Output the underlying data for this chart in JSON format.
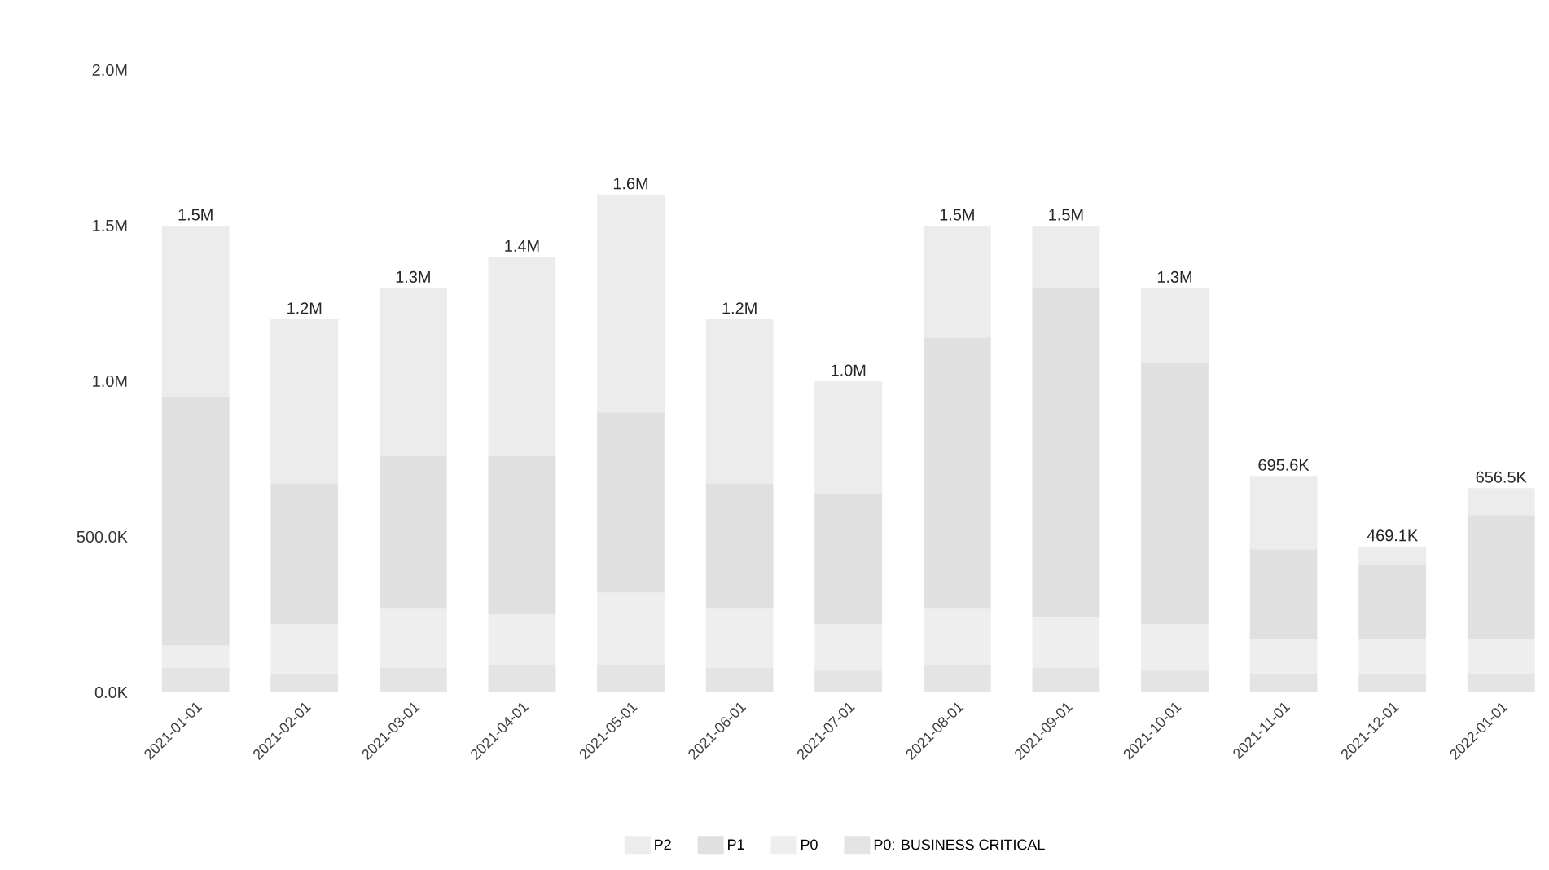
{
  "chart_data": {
    "type": "bar",
    "stacked": true,
    "categories": [
      "2021-01-01",
      "2021-02-01",
      "2021-03-01",
      "2021-04-01",
      "2021-05-01",
      "2021-06-01",
      "2021-07-01",
      "2021-08-01",
      "2021-09-01",
      "2021-10-01",
      "2021-11-01",
      "2021-12-01",
      "2022-01-01"
    ],
    "series": [
      {
        "name": "P0: BUSINESS CRITICAL",
        "color": "#e4e4e4",
        "values": [
          80000,
          60000,
          80000,
          90000,
          90000,
          80000,
          70000,
          90000,
          80000,
          70000,
          60000,
          60000,
          60000
        ]
      },
      {
        "name": "P0",
        "color": "#eeeeee",
        "values": [
          70000,
          160000,
          190000,
          160000,
          230000,
          190000,
          150000,
          180000,
          160000,
          150000,
          110000,
          110000,
          110000
        ]
      },
      {
        "name": "P1",
        "color": "#e0e0e0",
        "values": [
          800000,
          450000,
          490000,
          510000,
          580000,
          400000,
          420000,
          870000,
          1060000,
          840000,
          290000,
          240000,
          400000
        ]
      },
      {
        "name": "P2",
        "color": "#ececec",
        "values": [
          550000,
          530000,
          540000,
          640000,
          700000,
          530000,
          360000,
          360000,
          200000,
          240000,
          235600,
          59100,
          86500
        ]
      }
    ],
    "totals": [
      "1.5M",
      "1.2M",
      "1.3M",
      "1.4M",
      "1.6M",
      "1.2M",
      "1.0M",
      "1.5M",
      "1.5M",
      "1.3M",
      "695.6K",
      "469.1K",
      "656.5K"
    ],
    "ylim": [
      0,
      2000000
    ],
    "yticks": [
      {
        "value": 0,
        "label": "0.0K"
      },
      {
        "value": 500000,
        "label": "500.0K"
      },
      {
        "value": 1000000,
        "label": "1.0M"
      },
      {
        "value": 1500000,
        "label": "1.5M"
      },
      {
        "value": 2000000,
        "label": "2.0M"
      }
    ],
    "legend": "bottom",
    "grid": false
  }
}
